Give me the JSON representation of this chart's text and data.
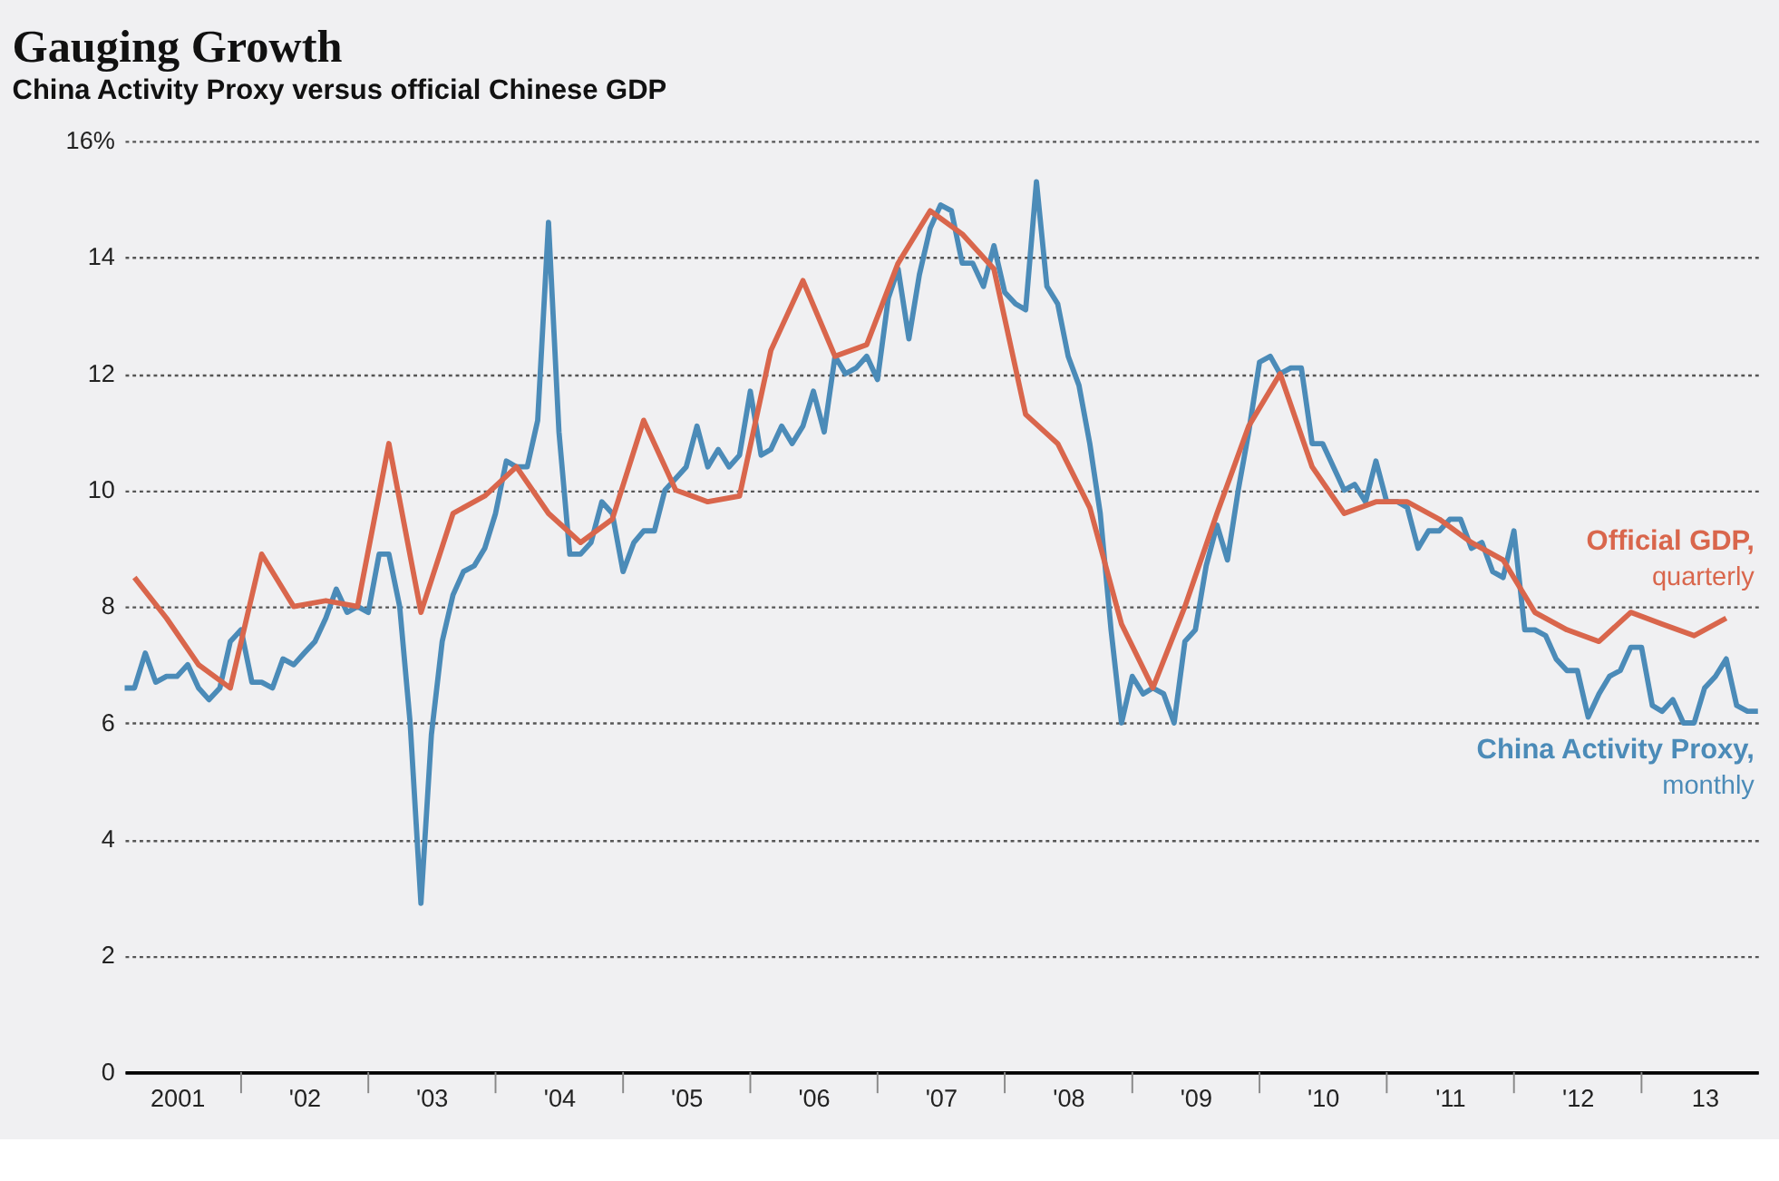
{
  "chart_data": {
    "type": "line",
    "title": "Gauging Growth",
    "subtitle": "China Activity Proxy versus official Chinese GDP",
    "xlim": [
      "2001-02-01",
      "2013-12-01"
    ],
    "ylim": [
      0,
      16
    ],
    "yticks": [
      0,
      2,
      4,
      6,
      8,
      10,
      12,
      14,
      {
        "value": 16,
        "label": "16%"
      }
    ],
    "xticks": [
      {
        "value": "2001-07-01",
        "label": "2001"
      },
      {
        "value": "2002-01-01",
        "label": null
      },
      {
        "value": "2002-07-01",
        "label": "'02"
      },
      {
        "value": "2003-01-01",
        "label": null
      },
      {
        "value": "2003-07-01",
        "label": "'03"
      },
      {
        "value": "2004-01-01",
        "label": null
      },
      {
        "value": "2004-07-01",
        "label": "'04"
      },
      {
        "value": "2005-01-01",
        "label": null
      },
      {
        "value": "2005-07-01",
        "label": "'05"
      },
      {
        "value": "2006-01-01",
        "label": null
      },
      {
        "value": "2006-07-01",
        "label": "'06"
      },
      {
        "value": "2007-01-01",
        "label": null
      },
      {
        "value": "2007-07-01",
        "label": "'07"
      },
      {
        "value": "2008-01-01",
        "label": null
      },
      {
        "value": "2008-07-01",
        "label": "'08"
      },
      {
        "value": "2009-01-01",
        "label": null
      },
      {
        "value": "2009-07-01",
        "label": "'09"
      },
      {
        "value": "2010-01-01",
        "label": null
      },
      {
        "value": "2010-07-01",
        "label": "'10"
      },
      {
        "value": "2011-01-01",
        "label": null
      },
      {
        "value": "2011-07-01",
        "label": "'11"
      },
      {
        "value": "2012-01-01",
        "label": null
      },
      {
        "value": "2012-07-01",
        "label": "'12"
      },
      {
        "value": "2013-01-01",
        "label": null
      },
      {
        "value": "2013-07-01",
        "label": "13"
      }
    ],
    "grid": "y",
    "legend": false,
    "marker": "none",
    "line_style": "solid",
    "series": [
      {
        "name": "China Activity Proxy, monthly",
        "color": "#4b8bb8",
        "x": [
          "2001-02",
          "2001-03",
          "2001-04",
          "2001-05",
          "2001-06",
          "2001-07",
          "2001-08",
          "2001-09",
          "2001-10",
          "2001-11",
          "2001-12",
          "2002-01",
          "2002-02",
          "2002-03",
          "2002-04",
          "2002-05",
          "2002-06",
          "2002-07",
          "2002-08",
          "2002-09",
          "2002-10",
          "2002-11",
          "2002-12",
          "2003-01",
          "2003-02",
          "2003-03",
          "2003-04",
          "2003-05",
          "2003-06",
          "2003-07",
          "2003-08",
          "2003-09",
          "2003-10",
          "2003-11",
          "2003-12",
          "2004-01",
          "2004-02",
          "2004-03",
          "2004-04",
          "2004-05",
          "2004-06",
          "2004-07",
          "2004-08",
          "2004-09",
          "2004-10",
          "2004-11",
          "2004-12",
          "2005-01",
          "2005-02",
          "2005-03",
          "2005-04",
          "2005-05",
          "2005-06",
          "2005-07",
          "2005-08",
          "2005-09",
          "2005-10",
          "2005-11",
          "2005-12",
          "2006-01",
          "2006-02",
          "2006-03",
          "2006-04",
          "2006-05",
          "2006-06",
          "2006-07",
          "2006-08",
          "2006-09",
          "2006-10",
          "2006-11",
          "2006-12",
          "2007-01",
          "2007-02",
          "2007-03",
          "2007-04",
          "2007-05",
          "2007-06",
          "2007-07",
          "2007-08",
          "2007-09",
          "2007-10",
          "2007-11",
          "2007-12",
          "2008-01",
          "2008-02",
          "2008-03",
          "2008-04",
          "2008-05",
          "2008-06",
          "2008-07",
          "2008-08",
          "2008-09",
          "2008-10",
          "2008-11",
          "2008-12",
          "2009-01",
          "2009-02",
          "2009-03",
          "2009-04",
          "2009-05",
          "2009-06",
          "2009-07",
          "2009-08",
          "2009-09",
          "2009-10",
          "2009-11",
          "2009-12",
          "2010-01",
          "2010-02",
          "2010-03",
          "2010-04",
          "2010-05",
          "2010-06",
          "2010-07",
          "2010-08",
          "2010-09",
          "2010-10",
          "2010-11",
          "2010-12",
          "2011-01",
          "2011-02",
          "2011-03",
          "2011-04",
          "2011-05",
          "2011-06",
          "2011-07",
          "2011-08",
          "2011-09",
          "2011-10",
          "2011-11",
          "2011-12",
          "2012-01",
          "2012-02",
          "2012-03",
          "2012-04",
          "2012-05",
          "2012-06",
          "2012-07",
          "2012-08",
          "2012-09",
          "2012-10",
          "2012-11",
          "2012-12",
          "2013-01",
          "2013-02",
          "2013-03",
          "2013-04",
          "2013-05",
          "2013-06",
          "2013-07",
          "2013-08",
          "2013-09",
          "2013-10",
          "2013-11",
          "2013-12"
        ],
        "values": [
          6.6,
          6.6,
          7.2,
          6.7,
          6.8,
          6.8,
          7.0,
          6.6,
          6.4,
          6.6,
          7.4,
          7.6,
          6.7,
          6.7,
          6.6,
          7.1,
          7.0,
          7.2,
          7.4,
          7.8,
          8.3,
          7.9,
          8.0,
          7.9,
          8.9,
          8.9,
          8.0,
          6.0,
          2.9,
          5.8,
          7.4,
          8.2,
          8.6,
          8.7,
          9.0,
          9.6,
          10.5,
          10.4,
          10.4,
          11.2,
          14.6,
          11.0,
          8.9,
          8.9,
          9.1,
          9.8,
          9.6,
          8.6,
          9.1,
          9.3,
          9.3,
          10.0,
          10.2,
          10.4,
          11.1,
          10.4,
          10.7,
          10.4,
          10.6,
          11.7,
          10.6,
          10.7,
          11.1,
          10.8,
          11.1,
          11.7,
          11.0,
          12.3,
          12.0,
          12.1,
          12.3,
          11.9,
          13.3,
          13.8,
          12.6,
          13.7,
          14.5,
          14.9,
          14.8,
          13.9,
          13.9,
          13.5,
          14.2,
          13.4,
          13.2,
          13.1,
          15.3,
          13.5,
          13.2,
          12.3,
          11.8,
          10.8,
          9.6,
          7.6,
          6.0,
          6.8,
          6.5,
          6.6,
          6.5,
          6.0,
          7.4,
          7.6,
          8.7,
          9.4,
          8.8,
          10.0,
          11.0,
          12.2,
          12.3,
          12.0,
          12.1,
          12.1,
          10.8,
          10.8,
          10.4,
          10.0,
          10.1,
          9.8,
          10.5,
          9.8,
          9.8,
          9.7,
          9.0,
          9.3,
          9.3,
          9.5,
          9.5,
          9.0,
          9.1,
          8.6,
          8.5,
          9.3,
          7.6,
          7.6,
          7.5,
          7.1,
          6.9,
          6.9,
          6.1,
          6.5,
          6.8,
          6.9,
          7.3,
          7.3,
          6.3,
          6.2,
          6.4,
          6.0,
          6.0,
          6.6,
          6.8,
          7.1,
          6.3,
          6.2,
          6.2
        ]
      },
      {
        "name": "Official GDP, quarterly",
        "color": "#d9664c",
        "x": [
          "2001-03",
          "2001-06",
          "2001-09",
          "2001-12",
          "2002-03",
          "2002-06",
          "2002-09",
          "2002-12",
          "2003-03",
          "2003-06",
          "2003-09",
          "2003-12",
          "2004-03",
          "2004-06",
          "2004-09",
          "2004-12",
          "2005-03",
          "2005-06",
          "2005-09",
          "2005-12",
          "2006-03",
          "2006-06",
          "2006-09",
          "2006-12",
          "2007-03",
          "2007-06",
          "2007-09",
          "2007-12",
          "2008-03",
          "2008-06",
          "2008-09",
          "2008-12",
          "2009-03",
          "2009-06",
          "2009-09",
          "2009-12",
          "2010-03",
          "2010-06",
          "2010-09",
          "2010-12",
          "2011-03",
          "2011-06",
          "2011-09",
          "2011-12",
          "2012-03",
          "2012-06",
          "2012-09",
          "2012-12",
          "2013-03",
          "2013-06",
          "2013-09"
        ],
        "values": [
          8.5,
          7.8,
          7.0,
          6.6,
          8.9,
          8.0,
          8.1,
          8.0,
          10.8,
          7.9,
          9.6,
          9.9,
          10.4,
          9.6,
          9.1,
          9.5,
          11.2,
          10.0,
          9.8,
          9.9,
          12.4,
          13.6,
          12.3,
          12.5,
          13.9,
          14.8,
          14.4,
          13.8,
          11.3,
          10.8,
          9.7,
          7.7,
          6.6,
          8.0,
          9.6,
          11.1,
          12.0,
          10.4,
          9.6,
          9.8,
          9.8,
          9.5,
          9.1,
          8.8,
          7.9,
          7.6,
          7.4,
          7.9,
          7.7,
          7.5,
          7.8
        ]
      }
    ]
  }
}
